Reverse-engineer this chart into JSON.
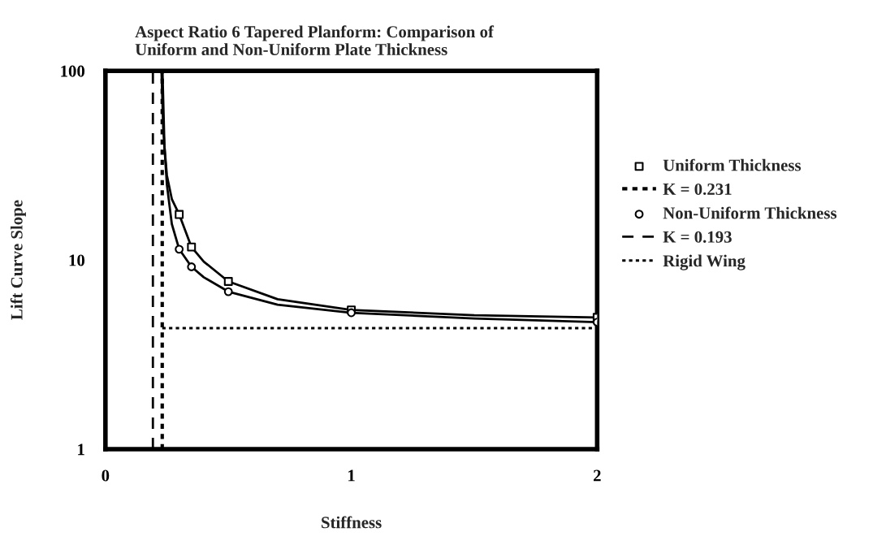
{
  "chart_data": {
    "type": "line",
    "title": "Aspect Ratio 6 Tapered Planform: Comparison of\nUniform and Non-Uniform Plate Thickness",
    "xlabel": "Stiffness",
    "ylabel": "Lift Curve Slope",
    "log": "y",
    "xlim": [
      0,
      2
    ],
    "xticks": [
      0,
      1,
      2
    ],
    "ylim": [
      1,
      100
    ],
    "yticks": [
      1,
      10,
      100
    ],
    "grid": false,
    "legend": "right",
    "series": [
      {
        "name": "Uniform Thickness",
        "type": "scatter",
        "marker": "square",
        "color": "#000000",
        "x": [
          0.3,
          0.35,
          0.5,
          1,
          2
        ],
        "values": [
          17.4,
          11.7,
          7.7,
          5.44,
          4.97
        ]
      },
      {
        "name": "K = 0.231",
        "line_style": "dotted",
        "color": "#000000",
        "x": [
          0.231,
          0.231
        ],
        "values": [
          1,
          100
        ]
      },
      {
        "name": "Non-Uniform Thickness",
        "type": "scatter",
        "marker": "circle",
        "color": "#000000",
        "x": [
          0.3,
          0.35,
          0.5,
          1,
          2
        ],
        "values": [
          11.4,
          9.2,
          6.8,
          5.26,
          4.69
        ]
      },
      {
        "name": "K = 0.193",
        "line_style": "dashed",
        "color": "#000000",
        "x": [
          0.193,
          0.193
        ],
        "values": [
          1,
          100
        ]
      },
      {
        "name": "Rigid Wing",
        "line_style": "dotted",
        "color": "#000000",
        "x": [
          0.231,
          2
        ],
        "values": [
          4.36,
          4.36
        ]
      },
      {
        "line_style": "solid",
        "color": "#000000",
        "x": [
          0.232,
          0.24,
          0.25,
          0.27,
          0.3,
          0.35,
          0.4,
          0.5,
          0.7,
          1,
          1.5,
          2
        ],
        "values": [
          100,
          40,
          28,
          21,
          17.4,
          11.7,
          9.8,
          7.7,
          6.2,
          5.44,
          5.1,
          4.97
        ]
      },
      {
        "line_style": "solid",
        "color": "#000000",
        "x": [
          0.228,
          0.235,
          0.25,
          0.27,
          0.3,
          0.35,
          0.4,
          0.5,
          0.7,
          1,
          1.5,
          2
        ],
        "values": [
          100,
          50,
          25,
          15.5,
          11.4,
          9.2,
          8.1,
          6.8,
          5.8,
          5.26,
          4.9,
          4.69
        ]
      }
    ]
  }
}
